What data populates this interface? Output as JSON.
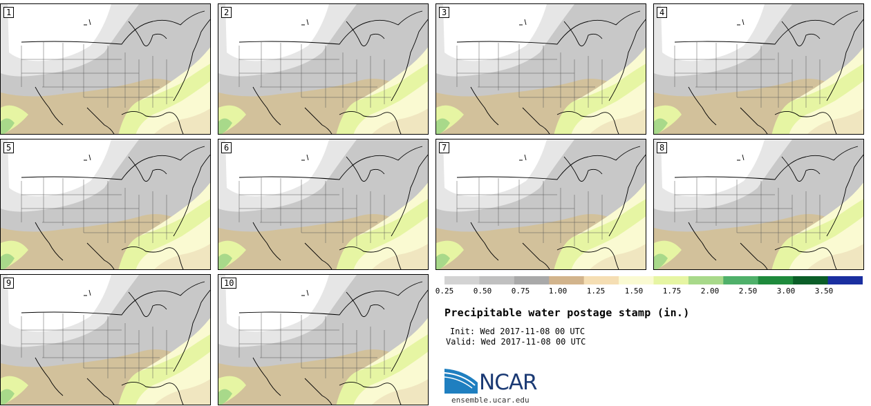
{
  "panels": [
    {
      "label": "1"
    },
    {
      "label": "2"
    },
    {
      "label": "3"
    },
    {
      "label": "4"
    },
    {
      "label": "5"
    },
    {
      "label": "6"
    },
    {
      "label": "7"
    },
    {
      "label": "8"
    },
    {
      "label": "9"
    },
    {
      "label": "10"
    }
  ],
  "legend": {
    "ticks": [
      "0.25",
      "0.50",
      "0.75",
      "1.00",
      "1.25",
      "1.50",
      "1.75",
      "2.00",
      "2.50",
      "3.00",
      "3.50"
    ],
    "colors": [
      "#d3d3d3",
      "#c0c0c0",
      "#a9a9a9",
      "#d2b48c",
      "#f5deb3",
      "#fafad2",
      "#e6f5a3",
      "#a8d98a",
      "#4fb06a",
      "#1e8a3c",
      "#0b5e28",
      "#1a2fa0"
    ]
  },
  "title": "Precipitable water postage stamp (in.)",
  "init": "Init: Wed 2017-11-08 00 UTC",
  "valid": "Valid: Wed 2017-11-08 00 UTC",
  "logo": {
    "name": "NCAR",
    "url": "ensemble.ucar.edu"
  }
}
